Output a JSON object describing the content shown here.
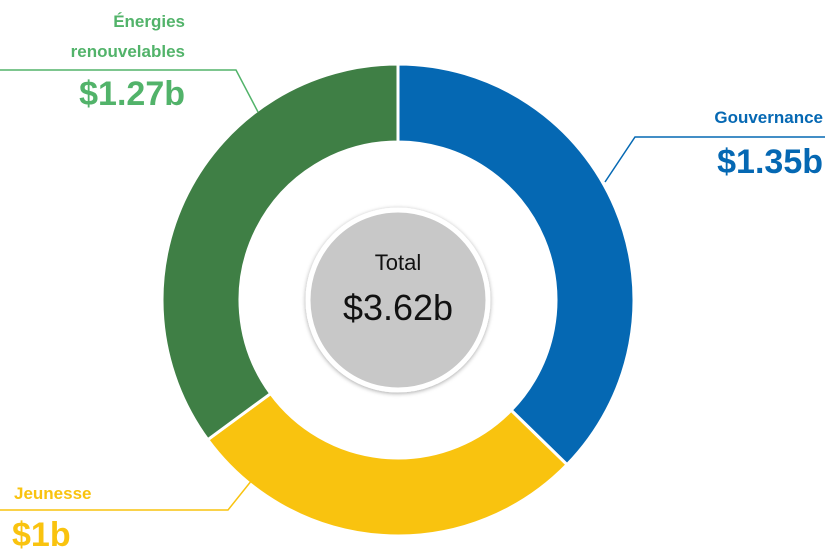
{
  "chart_data": {
    "type": "pie",
    "categories": [
      "Gouvernance",
      "Jeunesse",
      "Énergies renouvelables"
    ],
    "values": [
      1.35,
      1,
      1.27
    ],
    "value_labels": [
      "$1.35b",
      "$1b",
      "$1.27b"
    ],
    "colors": [
      "#0568b3",
      "#f9c30f",
      "#3f7f45"
    ],
    "label_colors": [
      "#0568b3",
      "#f9c30f",
      "#52b36a"
    ],
    "total_label": "Total",
    "total": 3.62,
    "total_value_label": "$3.62b"
  }
}
